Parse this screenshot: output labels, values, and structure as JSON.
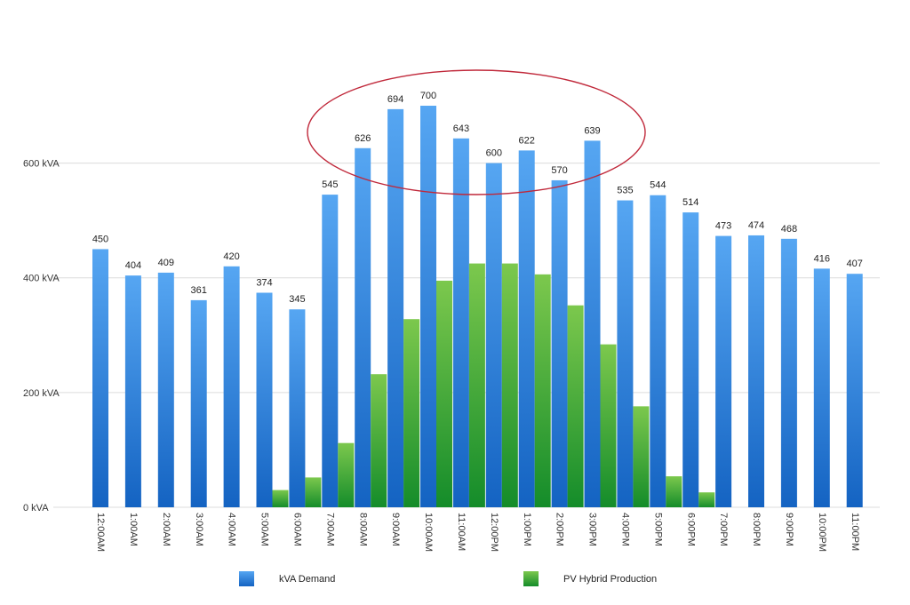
{
  "chart_data": {
    "type": "bar",
    "categories": [
      "12:00AM",
      "1:00AM",
      "2:00AM",
      "3:00AM",
      "4:00AM",
      "5:00AM",
      "6:00AM",
      "7:00AM",
      "8:00AM",
      "9:00AM",
      "10:00AM",
      "11:00AM",
      "12:00PM",
      "1:00PM",
      "2:00PM",
      "3:00PM",
      "4:00PM",
      "5:00PM",
      "6:00PM",
      "7:00PM",
      "8:00PM",
      "9:00PM",
      "10:00PM",
      "11:00PM"
    ],
    "series": [
      {
        "name": "kVA Demand",
        "values": [
          450,
          404,
          409,
          361,
          420,
          374,
          345,
          545,
          626,
          694,
          700,
          643,
          600,
          622,
          570,
          639,
          535,
          544,
          514,
          473,
          474,
          468,
          416,
          407
        ],
        "color": "#3d8ee6",
        "labels": [
          "450",
          "404",
          "409",
          "361",
          "420",
          "374",
          "345",
          "545",
          "626",
          "694",
          "700",
          "643",
          "600",
          "622",
          "570",
          "639",
          "535",
          "544",
          "514",
          "473",
          "474",
          "468",
          "416",
          "407"
        ]
      },
      {
        "name": "PV Hybrid Production",
        "values": [
          0,
          0,
          0,
          0,
          0,
          30,
          52,
          112,
          232,
          328,
          395,
          425,
          425,
          406,
          352,
          284,
          176,
          54,
          26,
          0,
          0,
          0,
          0,
          0
        ],
        "color": "#3fa83a"
      }
    ],
    "yticks": [
      0,
      200,
      400,
      600
    ],
    "ytick_labels": [
      "0 kVA",
      "200 kVA",
      "400 kVA",
      "600 kVA"
    ],
    "ylim": [
      0,
      700
    ],
    "grid": true,
    "legend_position": "bottom",
    "annotation": {
      "shape": "ellipse",
      "color": "#c0283a",
      "highlights": [
        "8:00AM",
        "9:00AM",
        "10:00AM",
        "11:00AM",
        "12:00PM",
        "1:00PM",
        "2:00PM",
        "3:00PM"
      ]
    }
  }
}
